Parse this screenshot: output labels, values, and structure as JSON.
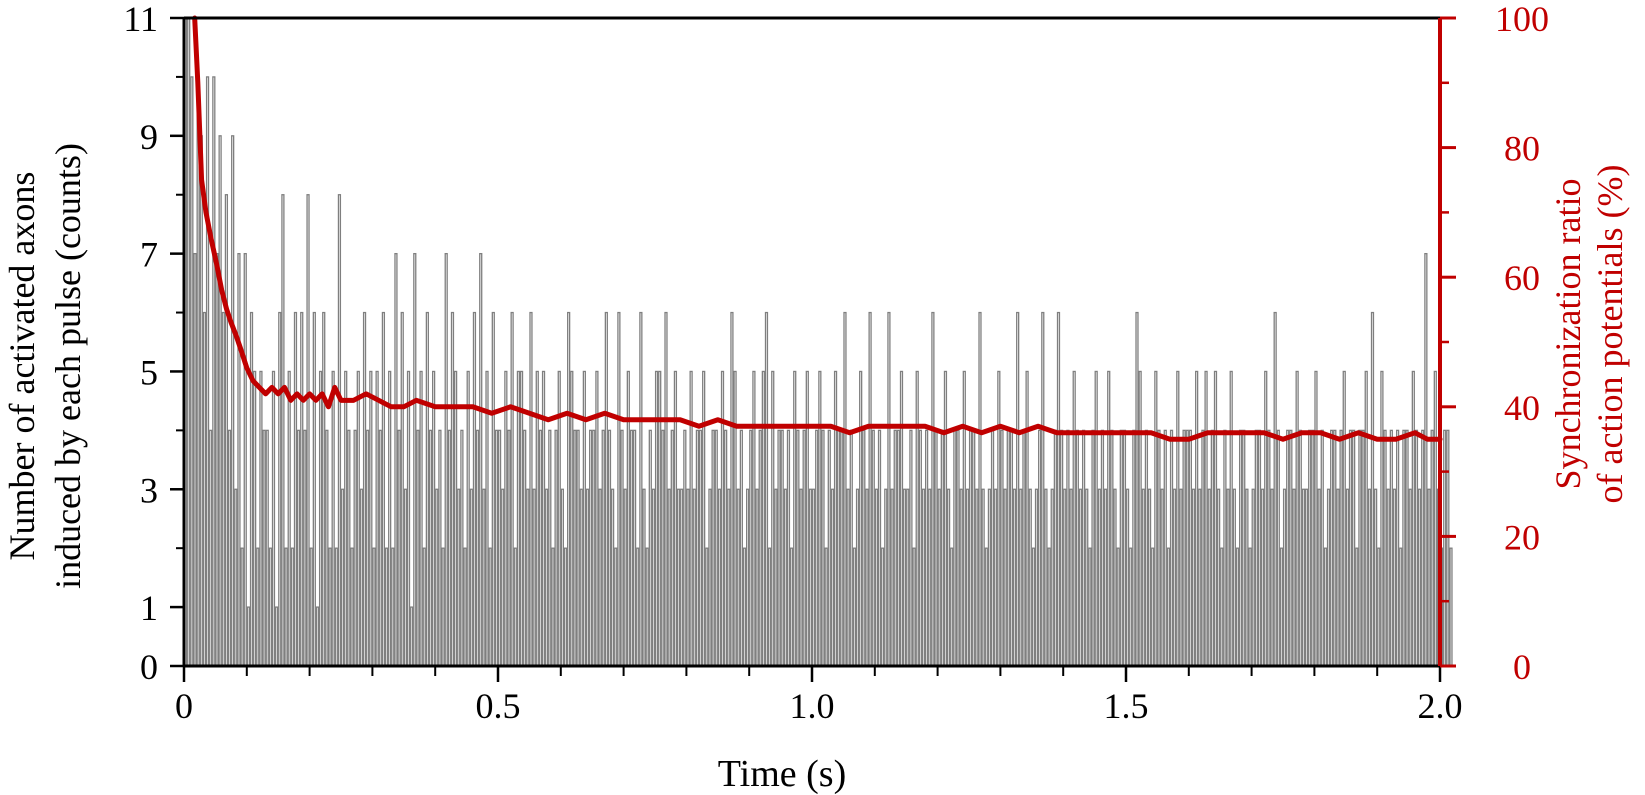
{
  "chart_data": {
    "type": "bar",
    "xlabel": "Time (s)",
    "ylabel_left_line1": "Number of activated axons",
    "ylabel_left_line2": "induced by each pulse (counts)",
    "ylabel_right_line1": "Synchronization ratio",
    "ylabel_right_line2": "of action potentials (%)",
    "xlim": [
      0,
      2.0
    ],
    "ylim_left": [
      0,
      11
    ],
    "ylim_right": [
      0,
      100
    ],
    "x_ticks": [
      "0",
      "0.5",
      "1.0",
      "1.5",
      "2.0"
    ],
    "x_tick_values": [
      0,
      0.5,
      1.0,
      1.5,
      2.0
    ],
    "y_left_ticks": [
      "0",
      "1",
      "3",
      "5",
      "7",
      "9",
      "11"
    ],
    "y_left_tick_values": [
      0,
      1,
      3,
      5,
      7,
      9,
      11
    ],
    "y_right_ticks": [
      "0",
      "20",
      "40",
      "60",
      "80",
      "100"
    ],
    "y_right_tick_values": [
      0,
      20,
      40,
      60,
      80,
      100
    ],
    "bar_color": "#7f7f7f",
    "line_color": "#c00000",
    "series": [
      {
        "axis": "left",
        "type": "bar",
        "pulse_interval_s": 0.005,
        "values": [
          11,
          11,
          10,
          7,
          10,
          9,
          6,
          10,
          4,
          10,
          7,
          9,
          6,
          8,
          4,
          9,
          3,
          7,
          2,
          7,
          1,
          6,
          5,
          2,
          5,
          4,
          4,
          2,
          5,
          1,
          6,
          8,
          2,
          5,
          2,
          6,
          4,
          6,
          4,
          8,
          2,
          6,
          1,
          5,
          6,
          4,
          2,
          5,
          2,
          8,
          3,
          5,
          4,
          2,
          4,
          5,
          3,
          6,
          4,
          5,
          2,
          5,
          4,
          6,
          2,
          5,
          2,
          7,
          4,
          6,
          3,
          5,
          1,
          7,
          4,
          5,
          2,
          6,
          4,
          5,
          3,
          4,
          2,
          7,
          4,
          6,
          5,
          3,
          4,
          2,
          5,
          3,
          6,
          4,
          7,
          3,
          5,
          2,
          6,
          4,
          4,
          3,
          5,
          4,
          6,
          2,
          5,
          5,
          4,
          3,
          6,
          3,
          5,
          4,
          5,
          3,
          4,
          2,
          4,
          5,
          3,
          2,
          6,
          5,
          4,
          4,
          3,
          5,
          3,
          4,
          4,
          5,
          3,
          4,
          6,
          4,
          3,
          2,
          6,
          4,
          3,
          5,
          4,
          4,
          2,
          6,
          3,
          2,
          4,
          3,
          5,
          5,
          4,
          6,
          3,
          4,
          5,
          3,
          3,
          4,
          3,
          5,
          3,
          4,
          4,
          5,
          2,
          3,
          4,
          4,
          3,
          5,
          4,
          3,
          6,
          5,
          3,
          4,
          2,
          3,
          4,
          5,
          3,
          4,
          5,
          6,
          2,
          5,
          3,
          4,
          4,
          3,
          4,
          2,
          5,
          4,
          3,
          4,
          5,
          3,
          3,
          4,
          5,
          4,
          2,
          4,
          3,
          5,
          4,
          4,
          6,
          3,
          4,
          2,
          3,
          5,
          4,
          3,
          6,
          4,
          3,
          4,
          2,
          3,
          6,
          3,
          4,
          4,
          5,
          3,
          3,
          4,
          2,
          5,
          4,
          3,
          4,
          3,
          6,
          4,
          3,
          4,
          5,
          3,
          2,
          4,
          4,
          3,
          5,
          3,
          4,
          4,
          3,
          6,
          3,
          2,
          3,
          4,
          3,
          5,
          4,
          3,
          4,
          4,
          3,
          6,
          3,
          4,
          5,
          3,
          2,
          3,
          4,
          6,
          3,
          2,
          3,
          4,
          6,
          4,
          3,
          4,
          3,
          5,
          4,
          3,
          4,
          3,
          2,
          4,
          5,
          3,
          4,
          3,
          5,
          4,
          3,
          2,
          4,
          4,
          3,
          2,
          4,
          6,
          5,
          3,
          4,
          3,
          2,
          5,
          4,
          3,
          4,
          2,
          4,
          3,
          5,
          3,
          4,
          4,
          4,
          3,
          5,
          3,
          4,
          5,
          3,
          4,
          5,
          3,
          2,
          4,
          3,
          5,
          3,
          2,
          4,
          4,
          3,
          2,
          3,
          4,
          4,
          3,
          5,
          4,
          3,
          6,
          4,
          2,
          3,
          4,
          4,
          3,
          5,
          4,
          3,
          3,
          4,
          4,
          5,
          3,
          4,
          2,
          3,
          4,
          4,
          3,
          4,
          5,
          3,
          4,
          4,
          2,
          4,
          4,
          5,
          3,
          6,
          3,
          2,
          5,
          4,
          3,
          4,
          3,
          4,
          2,
          4,
          4,
          3,
          5,
          4,
          3,
          4,
          7,
          3,
          4,
          5,
          3,
          2,
          4,
          4,
          2
        ]
      },
      {
        "axis": "right",
        "type": "line",
        "x": [
          0.017,
          0.022,
          0.028,
          0.035,
          0.043,
          0.052,
          0.06,
          0.068,
          0.075,
          0.083,
          0.09,
          0.1,
          0.11,
          0.12,
          0.13,
          0.14,
          0.15,
          0.16,
          0.17,
          0.18,
          0.19,
          0.2,
          0.21,
          0.22,
          0.23,
          0.24,
          0.25,
          0.27,
          0.29,
          0.31,
          0.33,
          0.35,
          0.37,
          0.4,
          0.43,
          0.46,
          0.49,
          0.52,
          0.55,
          0.58,
          0.61,
          0.64,
          0.67,
          0.7,
          0.73,
          0.76,
          0.79,
          0.82,
          0.85,
          0.88,
          0.91,
          0.94,
          0.97,
          1.0,
          1.03,
          1.06,
          1.09,
          1.12,
          1.15,
          1.18,
          1.21,
          1.24,
          1.27,
          1.3,
          1.33,
          1.36,
          1.39,
          1.42,
          1.45,
          1.48,
          1.51,
          1.54,
          1.57,
          1.6,
          1.63,
          1.66,
          1.69,
          1.72,
          1.75,
          1.78,
          1.81,
          1.84,
          1.87,
          1.9,
          1.93,
          1.96,
          1.98,
          2.0
        ],
        "values": [
          100,
          90,
          75,
          70,
          66,
          62,
          58,
          55,
          53,
          51,
          49,
          46,
          44,
          43,
          42,
          43,
          42,
          43,
          41,
          42,
          41,
          42,
          41,
          42,
          40,
          43,
          41,
          41,
          42,
          41,
          40,
          40,
          41,
          40,
          40,
          40,
          39,
          40,
          39,
          38,
          39,
          38,
          39,
          38,
          38,
          38,
          38,
          37,
          38,
          37,
          37,
          37,
          37,
          37,
          37,
          36,
          37,
          37,
          37,
          37,
          36,
          37,
          36,
          37,
          36,
          37,
          36,
          36,
          36,
          36,
          36,
          36,
          35,
          35,
          36,
          36,
          36,
          36,
          35,
          36,
          36,
          35,
          36,
          35,
          35,
          36,
          35,
          35
        ]
      }
    ]
  }
}
